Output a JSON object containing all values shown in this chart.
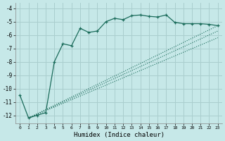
{
  "xlabel": "Humidex (Indice chaleur)",
  "ylabel": "",
  "bg_color": "#c6e8e8",
  "grid_color": "#aacece",
  "line_color": "#1a6b5a",
  "xlim": [
    -0.5,
    23.5
  ],
  "ylim": [
    -12.6,
    -3.6
  ],
  "yticks": [
    -12,
    -11,
    -10,
    -9,
    -8,
    -7,
    -6,
    -5,
    -4
  ],
  "xticks": [
    0,
    1,
    2,
    3,
    4,
    5,
    6,
    7,
    8,
    9,
    10,
    11,
    12,
    13,
    14,
    15,
    16,
    17,
    18,
    19,
    20,
    21,
    22,
    23
  ],
  "curve_x": [
    0,
    1,
    2,
    3,
    4,
    5,
    6,
    7,
    8,
    9,
    10,
    11,
    12,
    13,
    14,
    15,
    16,
    17,
    18,
    19,
    20,
    21,
    22,
    23
  ],
  "curve_y": [
    -10.5,
    -12.2,
    -12.0,
    -11.8,
    -8.0,
    -6.65,
    -6.8,
    -5.5,
    -5.8,
    -5.7,
    -5.0,
    -4.75,
    -4.85,
    -4.55,
    -4.5,
    -4.6,
    -4.65,
    -4.5,
    -5.05,
    -5.15,
    -5.15,
    -5.15,
    -5.2,
    -5.3
  ],
  "line1_x": [
    1,
    23
  ],
  "line1_y": [
    -12.2,
    -5.3
  ],
  "line2_x": [
    1,
    23
  ],
  "line2_y": [
    -12.2,
    -5.7
  ],
  "line3_x": [
    1,
    23
  ],
  "line3_y": [
    -12.2,
    -6.2
  ]
}
